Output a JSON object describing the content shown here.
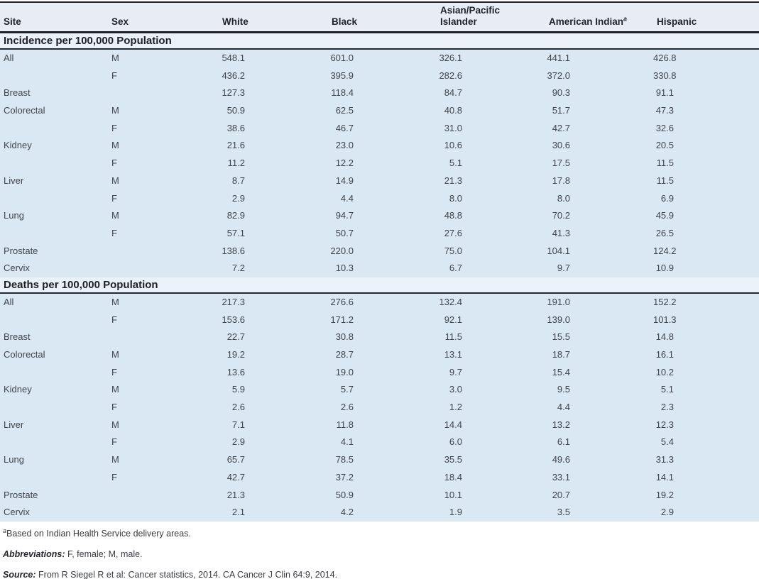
{
  "colors": {
    "data_row_bg": "#dae8f3",
    "header_row_bg": "#e8edf5",
    "section_header_bg": "#eaf1f8",
    "rule": "#20202b"
  },
  "table": {
    "columns": [
      {
        "label": "Site"
      },
      {
        "label": "Sex"
      },
      {
        "label": "White"
      },
      {
        "label": "Black"
      },
      {
        "label": "Asian/Pacific Islander"
      },
      {
        "label": "American Indian",
        "footnote_marker": "a"
      },
      {
        "label": "Hispanic"
      }
    ],
    "sections": [
      {
        "title": "Incidence per 100,000 Population",
        "rows": [
          {
            "site": "All",
            "sex": "M",
            "values": [
              "548.1",
              "601.0",
              "326.1",
              "441.1",
              "426.8"
            ]
          },
          {
            "site": "",
            "sex": "F",
            "values": [
              "436.2",
              "395.9",
              "282.6",
              "372.0",
              "330.8"
            ]
          },
          {
            "site": "Breast",
            "sex": "",
            "values": [
              "127.3",
              "118.4",
              "84.7",
              "90.3",
              "91.1"
            ]
          },
          {
            "site": "Colorectal",
            "sex": "M",
            "values": [
              "50.9",
              "62.5",
              "40.8",
              "51.7",
              "47.3"
            ]
          },
          {
            "site": "",
            "sex": "F",
            "values": [
              "38.6",
              "46.7",
              "31.0",
              "42.7",
              "32.6"
            ]
          },
          {
            "site": "Kidney",
            "sex": "M",
            "values": [
              "21.6",
              "23.0",
              "10.6",
              "30.6",
              "20.5"
            ]
          },
          {
            "site": "",
            "sex": "F",
            "values": [
              "11.2",
              "12.2",
              "5.1",
              "17.5",
              "11.5"
            ]
          },
          {
            "site": "Liver",
            "sex": "M",
            "values": [
              "8.7",
              "14.9",
              "21.3",
              "17.8",
              "11.5"
            ]
          },
          {
            "site": "",
            "sex": "F",
            "values": [
              "2.9",
              "4.4",
              "8.0",
              "8.0",
              "6.9"
            ]
          },
          {
            "site": "Lung",
            "sex": "M",
            "values": [
              "82.9",
              "94.7",
              "48.8",
              "70.2",
              "45.9"
            ]
          },
          {
            "site": "",
            "sex": "F",
            "values": [
              "57.1",
              "50.7",
              "27.6",
              "41.3",
              "26.5"
            ]
          },
          {
            "site": "Prostate",
            "sex": "",
            "values": [
              "138.6",
              "220.0",
              "75.0",
              "104.1",
              "124.2"
            ]
          },
          {
            "site": "Cervix",
            "sex": "",
            "values": [
              "7.2",
              "10.3",
              "6.7",
              "9.7",
              "10.9"
            ]
          }
        ]
      },
      {
        "title": "Deaths per 100,000 Population",
        "rows": [
          {
            "site": "All",
            "sex": "M",
            "values": [
              "217.3",
              "276.6",
              "132.4",
              "191.0",
              "152.2"
            ]
          },
          {
            "site": "",
            "sex": "F",
            "values": [
              "153.6",
              "171.2",
              "92.1",
              "139.0",
              "101.3"
            ]
          },
          {
            "site": "Breast",
            "sex": "",
            "values": [
              "22.7",
              "30.8",
              "11.5",
              "15.5",
              "14.8"
            ]
          },
          {
            "site": "Colorectal",
            "sex": "M",
            "values": [
              "19.2",
              "28.7",
              "13.1",
              "18.7",
              "16.1"
            ]
          },
          {
            "site": "",
            "sex": "F",
            "values": [
              "13.6",
              "19.0",
              "9.7",
              "15.4",
              "10.2"
            ]
          },
          {
            "site": "Kidney",
            "sex": "M",
            "values": [
              "5.9",
              "5.7",
              "3.0",
              "9.5",
              "5.1"
            ]
          },
          {
            "site": "",
            "sex": "F",
            "values": [
              "2.6",
              "2.6",
              "1.2",
              "4.4",
              "2.3"
            ]
          },
          {
            "site": "Liver",
            "sex": "M",
            "values": [
              "7.1",
              "11.8",
              "14.4",
              "13.2",
              "12.3"
            ]
          },
          {
            "site": "",
            "sex": "F",
            "values": [
              "2.9",
              "4.1",
              "6.0",
              "6.1",
              "5.4"
            ]
          },
          {
            "site": "Lung",
            "sex": "M",
            "values": [
              "65.7",
              "78.5",
              "35.5",
              "49.6",
              "31.3"
            ]
          },
          {
            "site": "",
            "sex": "F",
            "values": [
              "42.7",
              "37.2",
              "18.4",
              "33.1",
              "14.1"
            ]
          },
          {
            "site": "Prostate",
            "sex": "",
            "values": [
              "21.3",
              "50.9",
              "10.1",
              "20.7",
              "19.2"
            ]
          },
          {
            "site": "Cervix",
            "sex": "",
            "values": [
              "2.1",
              "4.2",
              "1.9",
              "3.5",
              "2.9"
            ]
          }
        ]
      }
    ]
  },
  "footnotes": {
    "marker": "a",
    "note": "Based on Indian Health Service delivery areas.",
    "abbreviations_label": "Abbreviations:",
    "abbreviations": " F, female; M, male.",
    "source_label": "Source:",
    "source": " From R Siegel R et al: Cancer statistics, 2014. CA Cancer J Clin 64:9, 2014."
  }
}
